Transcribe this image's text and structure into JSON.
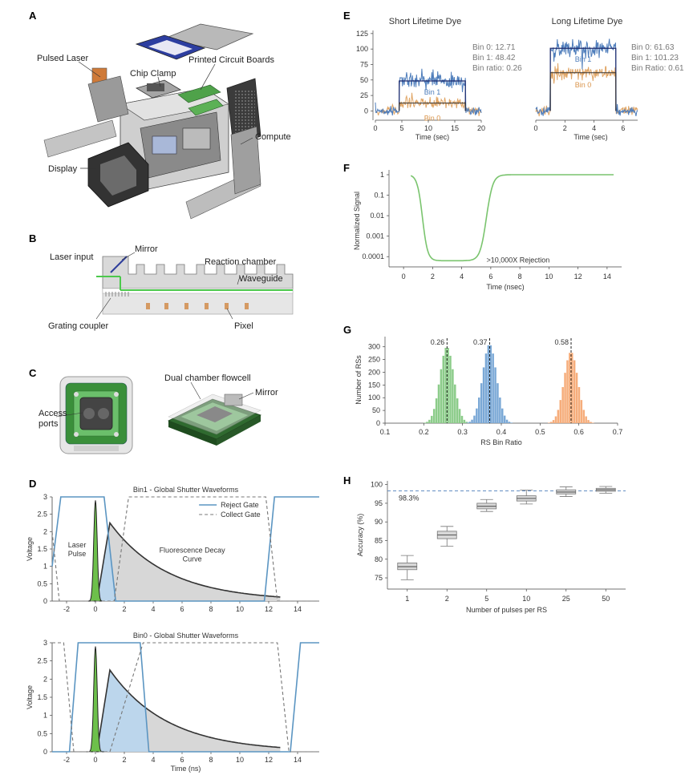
{
  "panel_letters": {
    "a": "A",
    "b": "B",
    "c": "C",
    "d": "D",
    "e": "E",
    "f": "F",
    "g": "G",
    "h": "H"
  },
  "panel_a": {
    "labels": {
      "pulsed_laser": "Pulsed Laser",
      "chip_clamp": "Chip Clamp",
      "pcb": "Printed Circuit Boards",
      "compute": "Compute",
      "display": "Display"
    }
  },
  "panel_b": {
    "labels": {
      "laser_input": "Laser input",
      "mirror": "Mirror",
      "reaction_chamber": "Reaction chamber",
      "waveguide": "Waveguide",
      "grating_coupler": "Grating coupler",
      "pixel": "Pixel"
    }
  },
  "panel_c": {
    "labels": {
      "dual_chamber": "Dual chamber flowcell",
      "mirror": "Mirror",
      "access_line1": "Access",
      "access_line2": "ports"
    }
  },
  "chart_data": [
    {
      "id": "D-top",
      "type": "line",
      "title": "Bin1 - Global Shutter Waveforms",
      "ylabel": "Voltage",
      "xlim": [
        -3,
        15.5
      ],
      "ylim": [
        0,
        3
      ],
      "xticks": [
        -2,
        0,
        2,
        4,
        6,
        8,
        10,
        12,
        14
      ],
      "yticks": [
        0,
        0.5,
        1,
        1.5,
        2,
        2.5,
        3
      ],
      "ytick_labels": [
        "0",
        "0.5",
        "1",
        "1.5",
        "2",
        "2.5",
        "3"
      ],
      "legend": [
        "Reject Gate",
        "Collect Gate"
      ],
      "legend_placement": "top-right",
      "annotations": {
        "laser1": "Laser",
        "laser2": "Pulse",
        "fluor1": "Fluorescence Decay",
        "fluor2": "Curve"
      },
      "reject_gate": {
        "x": [
          -3,
          -2.4,
          -2,
          0.6,
          1.4,
          11.7,
          12.4,
          15.5
        ],
        "y": [
          1,
          3,
          3,
          3,
          0,
          0,
          3,
          3
        ]
      },
      "collect_gate": {
        "x": [
          -3,
          -2.5,
          -1.8,
          1.3,
          2.3,
          11.8,
          12.6,
          15.5
        ],
        "y": [
          2,
          0,
          0,
          0,
          3,
          3,
          0,
          0
        ]
      }
    },
    {
      "id": "D-bottom",
      "type": "line",
      "title": "Bin0 - Global Shutter Waveforms",
      "ylabel": "Voltage",
      "xlabel": "Time (ns)",
      "xlim": [
        -3,
        15.5
      ],
      "ylim": [
        0,
        3
      ],
      "xticks": [
        -2,
        0,
        2,
        4,
        6,
        8,
        10,
        12,
        14
      ],
      "yticks": [
        0,
        0.5,
        1,
        1.5,
        2,
        2.5,
        3
      ],
      "ytick_labels": [
        "0",
        "0.5",
        "1",
        "1.5",
        "2",
        "2.5",
        "3"
      ],
      "reject_gate": {
        "x": [
          -3,
          -1.8,
          -1.2,
          3.1,
          3.7,
          13.5,
          14.2,
          15.5
        ],
        "y": [
          0,
          0,
          3,
          3,
          0,
          0,
          3,
          3
        ]
      },
      "collect_gate": {
        "x": [
          -3,
          -2.2,
          -1.5,
          1.0,
          3.3,
          12.6,
          13.4,
          15.5
        ],
        "y": [
          3,
          3,
          0,
          0,
          3,
          3,
          0,
          0
        ]
      }
    },
    {
      "id": "E",
      "type": "line",
      "titles": [
        "Short Lifetime Dye",
        "Long Lifetime Dye"
      ],
      "xlabel": "Time (sec)",
      "ylim": [
        -15,
        130
      ],
      "yticks": [
        0,
        25,
        50,
        75,
        100,
        125
      ],
      "left": {
        "xlim": [
          0,
          20
        ],
        "xticks": [
          0,
          5,
          10,
          15,
          20
        ],
        "bin1_level": 48.42,
        "bin0_level": 12.71,
        "on": [
          4.5,
          17
        ],
        "stats": [
          "Bin 0: 12.71",
          "Bin 1: 48.42",
          "Bin ratio: 0.26"
        ],
        "bin1_label": "Bin 1",
        "bin0_label": "Bin 0"
      },
      "right": {
        "xlim": [
          0,
          7
        ],
        "xticks": [
          0,
          2,
          4,
          6
        ],
        "bin1_level": 101.23,
        "bin0_level": 61.63,
        "on": [
          1.0,
          5.5
        ],
        "stats": [
          "Bin 0: 61.63",
          "Bin 1: 101.23",
          "Bin Ratio: 0.61"
        ],
        "bin1_label": "Bin 1",
        "bin0_label": "Bin 0"
      }
    },
    {
      "id": "F",
      "type": "line",
      "ylabel": "Normalized Signal",
      "xlabel": "Time (nsec)",
      "xlim": [
        -1,
        15
      ],
      "xticks": [
        0,
        2,
        4,
        6,
        8,
        10,
        12,
        14
      ],
      "ytick_labels": [
        "1",
        "0.1",
        "0.01",
        "0.001",
        "0.0001"
      ],
      "y_scale": "log",
      "annotation": ">10,000X Rejection"
    },
    {
      "id": "G",
      "type": "bar",
      "ylabel": "Number of RSs",
      "xlabel": "RS Bin Ratio",
      "xlim": [
        0.1,
        0.7
      ],
      "ylim": [
        0,
        340
      ],
      "xticks": [
        0.1,
        0.2,
        0.3,
        0.4,
        0.5,
        0.6,
        0.7
      ],
      "xtick_labels": [
        "0.1",
        "0.2",
        "0.3",
        "0.4",
        "0.5",
        "0.6",
        "0.7"
      ],
      "yticks": [
        0,
        50,
        100,
        150,
        200,
        250,
        300
      ],
      "series": [
        {
          "mean": 0.26,
          "sd": 0.018,
          "peak": 300,
          "color": "#8ccc8a",
          "label": "0.26"
        },
        {
          "mean": 0.37,
          "sd": 0.018,
          "peak": 310,
          "color": "#7aa8d6",
          "label": "0.37"
        },
        {
          "mean": 0.58,
          "sd": 0.018,
          "peak": 280,
          "color": "#f6ad7b",
          "label": "0.58"
        }
      ]
    },
    {
      "id": "H",
      "type": "boxplot",
      "ylabel": "Accuracy (%)",
      "xlabel": "Number of pulses per RS",
      "categories": [
        "1",
        "2",
        "5",
        "10",
        "25",
        "50"
      ],
      "ylim": [
        72,
        101
      ],
      "yticks": [
        75,
        80,
        85,
        90,
        95,
        100
      ],
      "reference_line": 98.3,
      "reference_label": "98.3%",
      "boxes": [
        {
          "min": 74.5,
          "q1": 77.2,
          "median": 78.0,
          "q3": 79.0,
          "max": 81.0
        },
        {
          "min": 83.5,
          "q1": 85.5,
          "median": 86.5,
          "q3": 87.5,
          "max": 88.8
        },
        {
          "min": 92.8,
          "q1": 93.5,
          "median": 94.2,
          "q3": 95.0,
          "max": 96.0
        },
        {
          "min": 94.8,
          "q1": 95.6,
          "median": 96.3,
          "q3": 97.0,
          "max": 98.5
        },
        {
          "min": 96.8,
          "q1": 97.5,
          "median": 98.0,
          "q3": 98.6,
          "max": 99.4
        },
        {
          "min": 97.7,
          "q1": 98.2,
          "median": 98.6,
          "q3": 99.0,
          "max": 99.5
        }
      ]
    }
  ]
}
